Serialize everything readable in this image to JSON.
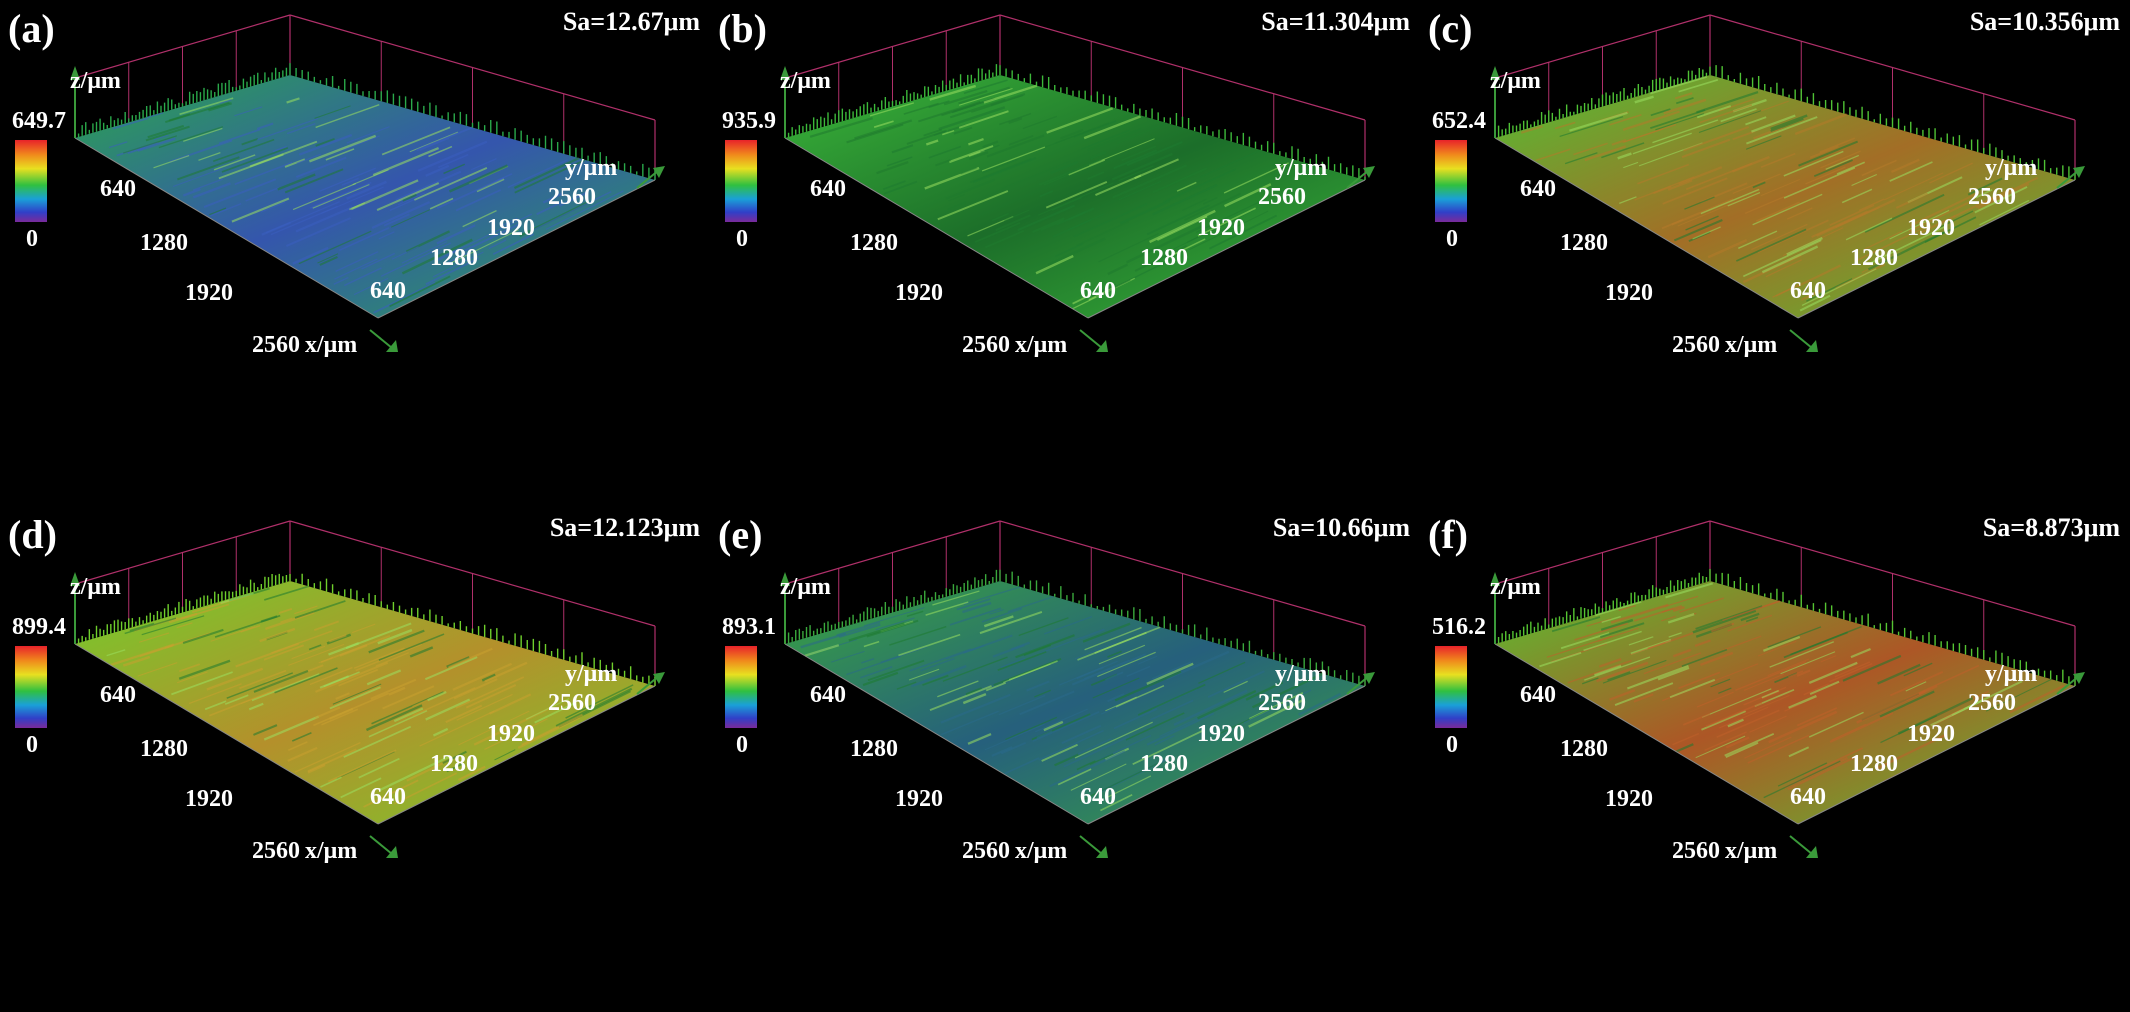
{
  "panels": [
    {
      "id": "a",
      "label": "(a)",
      "sa": "Sa=12.67μm",
      "zmax": "649.7",
      "zmin": "0",
      "xlabel": "x/μm",
      "ylabel": "y/μm",
      "zlabel": "z/μm",
      "xticks": [
        "640",
        "1280",
        "1920",
        "2560"
      ],
      "yticks": [
        "640",
        "1280",
        "1920",
        "2560"
      ],
      "surface_color": "#2aa84a",
      "highlight_color": "#3a5fc0"
    },
    {
      "id": "b",
      "label": "(b)",
      "sa": "Sa=11.304μm",
      "zmax": "935.9",
      "zmin": "0",
      "xlabel": "x/μm",
      "ylabel": "y/μm",
      "zlabel": "z/μm",
      "xticks": [
        "640",
        "1280",
        "1920",
        "2560"
      ],
      "yticks": [
        "640",
        "1280",
        "1920",
        "2560"
      ],
      "surface_color": "#3cb83a",
      "highlight_color": "#1f7a2e"
    },
    {
      "id": "c",
      "label": "(c)",
      "sa": "Sa=10.356μm",
      "zmax": "652.4",
      "zmin": "0",
      "xlabel": "x/μm",
      "ylabel": "y/μm",
      "zlabel": "z/μm",
      "xticks": [
        "640",
        "1280",
        "1920",
        "2560"
      ],
      "yticks": [
        "640",
        "1280",
        "1920",
        "2560"
      ],
      "surface_color": "#4fc235",
      "highlight_color": "#b57a2a"
    },
    {
      "id": "d",
      "label": "(d)",
      "sa": "Sa=12.123μm",
      "zmax": "899.4",
      "zmin": "0",
      "xlabel": "x/μm",
      "ylabel": "y/μm",
      "zlabel": "z/μm",
      "xticks": [
        "640",
        "1280",
        "1920",
        "2560"
      ],
      "yticks": [
        "640",
        "1280",
        "1920",
        "2560"
      ],
      "surface_color": "#6fcf2c",
      "highlight_color": "#c8a030"
    },
    {
      "id": "e",
      "label": "(e)",
      "sa": "Sa=10.66μm",
      "zmax": "893.1",
      "zmin": "0",
      "xlabel": "x/μm",
      "ylabel": "y/μm",
      "zlabel": "z/μm",
      "xticks": [
        "640",
        "1280",
        "1920",
        "2560"
      ],
      "yticks": [
        "640",
        "1280",
        "1920",
        "2560"
      ],
      "surface_color": "#3aa83c",
      "highlight_color": "#2a6a8a"
    },
    {
      "id": "f",
      "label": "(f)",
      "sa": "Sa=8.873μm",
      "zmax": "516.2",
      "zmin": "0",
      "xlabel": "x/μm",
      "ylabel": "y/μm",
      "zlabel": "z/μm",
      "xticks": [
        "640",
        "1280",
        "1920",
        "2560"
      ],
      "yticks": [
        "640",
        "1280",
        "1920",
        "2560"
      ],
      "surface_color": "#55c432",
      "highlight_color": "#c0602a"
    }
  ]
}
